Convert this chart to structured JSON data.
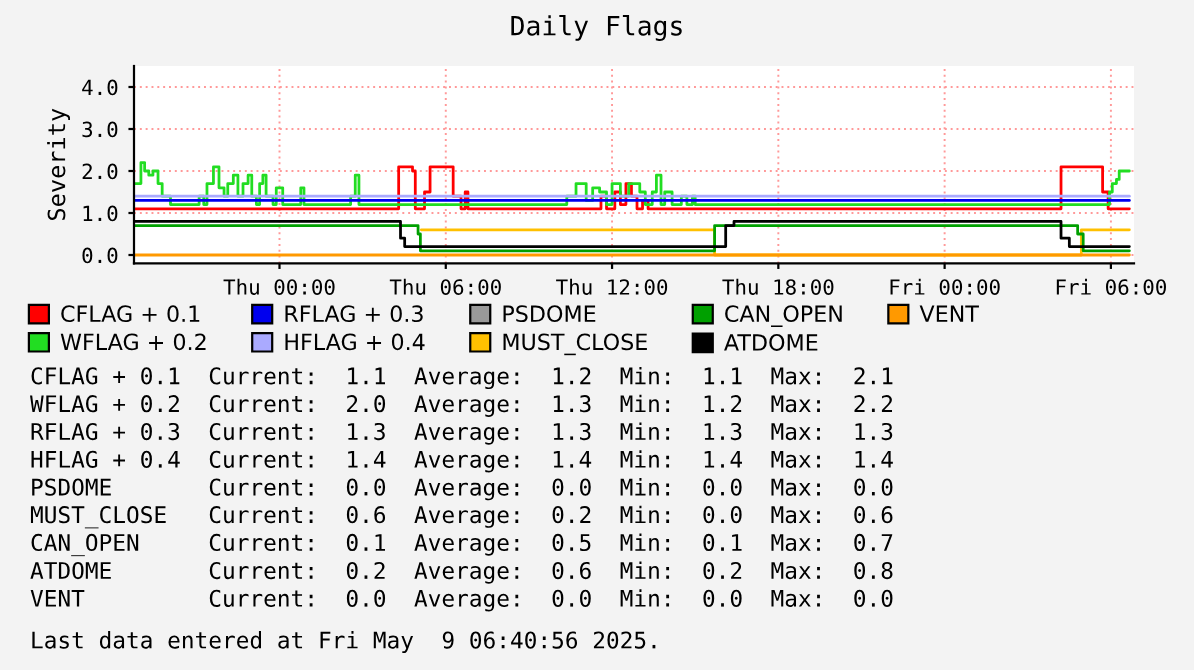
{
  "chart_data": {
    "type": "step",
    "title": "Daily Flags",
    "ylabel": "Severity",
    "xlim": [
      "2025-05-07T18:45",
      "2025-05-09T06:50"
    ],
    "xticks": [
      {
        "value": "2025-05-08T00:00",
        "label": "Thu 00:00"
      },
      {
        "value": "2025-05-08T06:00",
        "label": "Thu 06:00"
      },
      {
        "value": "2025-05-08T12:00",
        "label": "Thu 12:00"
      },
      {
        "value": "2025-05-08T18:00",
        "label": "Thu 18:00"
      },
      {
        "value": "2025-05-09T00:00",
        "label": "Fri 00:00"
      },
      {
        "value": "2025-05-09T06:00",
        "label": "Fri 06:00"
      }
    ],
    "ylim": [
      -0.2,
      4.5
    ],
    "yticks": [
      {
        "value": 0,
        "label": "0.0"
      },
      {
        "value": 1,
        "label": "1.0"
      },
      {
        "value": 2,
        "label": "2.0"
      },
      {
        "value": 3,
        "label": "3.0"
      },
      {
        "value": 4,
        "label": "4.0"
      }
    ],
    "grid": true,
    "legend": "bottom",
    "series": [
      {
        "name": "CFLAG + 0.1",
        "color": "#ff0000",
        "type": "line",
        "x": [
          "2025-05-07T18:45",
          "2025-05-08T04:18",
          "2025-05-08T04:18",
          "2025-05-08T04:48",
          "2025-05-08T04:48",
          "2025-05-08T04:54",
          "2025-05-08T04:54",
          "2025-05-08T05:14",
          "2025-05-08T05:14",
          "2025-05-08T05:26",
          "2025-05-08T05:26",
          "2025-05-08T06:16",
          "2025-05-08T06:16",
          "2025-05-08T06:33",
          "2025-05-08T06:33",
          "2025-05-08T06:42",
          "2025-05-08T06:42",
          "2025-05-08T06:48",
          "2025-05-08T06:48",
          "2025-05-08T11:36",
          "2025-05-08T11:36",
          "2025-05-08T11:48",
          "2025-05-08T11:48",
          "2025-05-08T12:06",
          "2025-05-08T12:06",
          "2025-05-08T12:18",
          "2025-05-08T12:18",
          "2025-05-08T12:30",
          "2025-05-08T12:30",
          "2025-05-08T12:42",
          "2025-05-08T12:42",
          "2025-05-08T12:54",
          "2025-05-08T12:54",
          "2025-05-08T13:06",
          "2025-05-08T13:06",
          "2025-05-08T13:18",
          "2025-05-08T13:18",
          "2025-05-09T04:12",
          "2025-05-09T04:12",
          "2025-05-09T05:42",
          "2025-05-09T05:42",
          "2025-05-09T05:54",
          "2025-05-09T05:54",
          "2025-05-09T06:40"
        ],
        "values": [
          1.1,
          1.1,
          2.1,
          2.1,
          2.0,
          2.0,
          1.1,
          1.1,
          1.5,
          1.5,
          2.1,
          2.1,
          1.4,
          1.4,
          1.1,
          1.1,
          1.5,
          1.5,
          1.1,
          1.1,
          1.4,
          1.4,
          1.1,
          1.1,
          1.5,
          1.5,
          1.2,
          1.2,
          1.7,
          1.7,
          1.4,
          1.4,
          1.1,
          1.1,
          1.3,
          1.3,
          1.1,
          1.1,
          2.1,
          2.1,
          1.5,
          1.5,
          1.1,
          1.1
        ]
      },
      {
        "name": "WFLAG + 0.2",
        "color": "#22dd22",
        "x": [
          "2025-05-07T18:46",
          "2025-05-07T19:00",
          "2025-05-07T19:08",
          "2025-05-07T19:17",
          "2025-05-07T19:26",
          "2025-05-07T19:37",
          "2025-05-07T19:46",
          "2025-05-07T20:04",
          "2025-05-07T21:06",
          "2025-05-07T21:16",
          "2025-05-07T21:23",
          "2025-05-07T21:37",
          "2025-05-07T21:49",
          "2025-05-07T22:00",
          "2025-05-07T22:08",
          "2025-05-07T22:20",
          "2025-05-07T22:30",
          "2025-05-07T22:41",
          "2025-05-07T22:52",
          "2025-05-07T23:00",
          "2025-05-07T23:10",
          "2025-05-07T23:17",
          "2025-05-07T23:24",
          "2025-05-07T23:31",
          "2025-05-07T23:46",
          "2025-05-07T23:53",
          "2025-05-08T00:07",
          "2025-05-08T00:46",
          "2025-05-08T00:53",
          "2025-05-08T02:34",
          "2025-05-08T02:44",
          "2025-05-08T02:52",
          "2025-05-08T10:22",
          "2025-05-08T10:42",
          "2025-05-08T11:04",
          "2025-05-08T11:18",
          "2025-05-08T11:33",
          "2025-05-08T11:48",
          "2025-05-08T12:00",
          "2025-05-08T12:18",
          "2025-05-08T12:36",
          "2025-05-08T13:00",
          "2025-05-08T13:12",
          "2025-05-08T13:27",
          "2025-05-08T13:36",
          "2025-05-08T13:46",
          "2025-05-08T13:54",
          "2025-05-08T14:10",
          "2025-05-08T14:30",
          "2025-05-08T14:42",
          "2025-05-08T14:54",
          "2025-05-08T15:00",
          "2025-05-09T05:57",
          "2025-05-09T06:03",
          "2025-05-09T06:12",
          "2025-05-09T06:18",
          "2025-05-09T06:40"
        ],
        "values": [
          1.7,
          2.2,
          2.0,
          1.9,
          2.0,
          1.7,
          1.4,
          1.2,
          1.4,
          1.2,
          1.7,
          2.1,
          1.6,
          1.4,
          1.7,
          1.9,
          1.4,
          1.7,
          1.9,
          1.4,
          1.2,
          1.7,
          1.9,
          1.4,
          1.2,
          1.6,
          1.2,
          1.6,
          1.2,
          1.4,
          1.9,
          1.2,
          1.4,
          1.7,
          1.3,
          1.6,
          1.5,
          1.2,
          1.7,
          1.4,
          1.7,
          1.5,
          1.2,
          1.5,
          1.9,
          1.2,
          1.5,
          1.2,
          1.4,
          1.2,
          1.4,
          1.2,
          1.5,
          1.7,
          1.8,
          2.0,
          2.0
        ]
      },
      {
        "name": "RFLAG + 0.3",
        "color": "#0000ee",
        "x": [
          "2025-05-07T18:45",
          "2025-05-09T06:40"
        ],
        "values": [
          1.3,
          1.3
        ]
      },
      {
        "name": "HFLAG + 0.4",
        "color": "#aaaaff",
        "x": [
          "2025-05-07T18:45",
          "2025-05-09T06:40"
        ],
        "values": [
          1.4,
          1.4
        ]
      },
      {
        "name": "PSDOME",
        "color": "#999999"
      },
      {
        "name": "MUST_CLOSE",
        "color": "#ffc000",
        "x": [
          "2025-05-08T05:07",
          "2025-05-08T15:42",
          "2025-05-09T04:56",
          "2025-05-09T06:40"
        ],
        "values": [
          0.6,
          0.0,
          0.6,
          0.6
        ]
      },
      {
        "name": "CAN_OPEN",
        "color": "#00a000",
        "x": [
          "2025-05-07T18:45",
          "2025-05-08T05:00",
          "2025-05-08T05:05",
          "2025-05-08T15:42",
          "2025-05-09T04:48",
          "2025-05-09T05:00",
          "2025-05-09T06:40"
        ],
        "values": [
          0.7,
          0.5,
          0.1,
          0.7,
          0.5,
          0.1,
          0.1
        ]
      },
      {
        "name": "ATDOME",
        "color": "#000000",
        "x": [
          "2025-05-07T18:45",
          "2025-05-08T04:22",
          "2025-05-08T04:31",
          "2025-05-08T16:06",
          "2025-05-08T16:24",
          "2025-05-09T04:12",
          "2025-05-09T04:30",
          "2025-05-09T06:40"
        ],
        "values": [
          0.8,
          0.4,
          0.2,
          0.7,
          0.8,
          0.4,
          0.2,
          0.2
        ]
      },
      {
        "name": "VENT",
        "color": "#ff9900",
        "x": [
          "2025-05-07T18:45",
          "2025-05-09T06:40"
        ],
        "values": [
          0.0,
          0.0
        ]
      }
    ],
    "annotations": [
      "CFLAG + 0.1  Current:  1.1  Average:  1.2  Min:  1.1  Max:  2.1",
      "WFLAG + 0.2  Current:  2.0  Average:  1.3  Min:  1.2  Max:  2.2",
      "RFLAG + 0.3  Current:  1.3  Average:  1.3  Min:  1.3  Max:  1.3",
      "HFLAG + 0.4  Current:  1.4  Average:  1.4  Min:  1.4  Max:  1.4",
      "PSDOME       Current:  0.0  Average:  0.0  Min:  0.0  Max:  0.0",
      "MUST_CLOSE   Current:  0.6  Average:  0.2  Min:  0.0  Max:  0.6",
      "CAN_OPEN     Current:  0.1  Average:  0.5  Min:  0.1  Max:  0.7",
      "ATDOME       Current:  0.2  Average:  0.6  Min:  0.2  Max:  0.8",
      "VENT         Current:  0.0  Average:  0.0  Min:  0.0  Max:  0.0",
      "Last data entered at Fri May  9 06:40:56 2025."
    ]
  }
}
